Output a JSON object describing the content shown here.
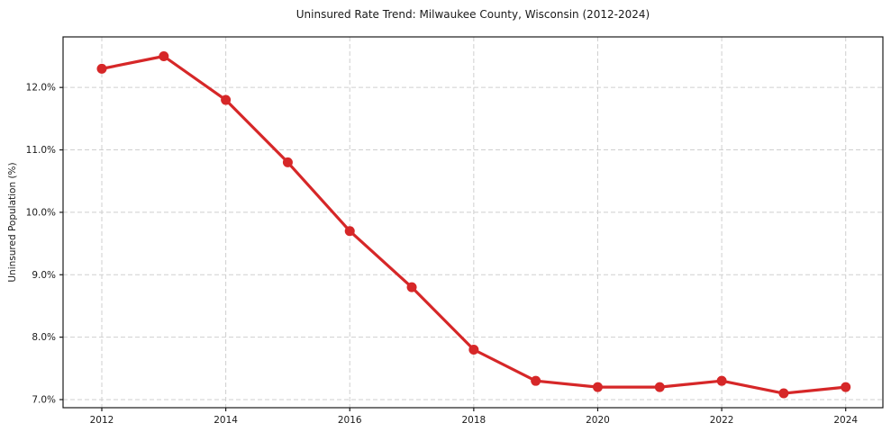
{
  "chart_data": {
    "type": "line",
    "title": "Uninsured Rate Trend: Milwaukee County, Wisconsin (2012-2024)",
    "xlabel": "",
    "ylabel": "Uninsured Population (%)",
    "x": [
      2012,
      2013,
      2014,
      2015,
      2016,
      2017,
      2018,
      2019,
      2020,
      2021,
      2022,
      2023,
      2024
    ],
    "series": [
      {
        "name": "Uninsured Rate",
        "values": [
          12.3,
          12.5,
          11.8,
          10.8,
          9.7,
          8.8,
          7.8,
          7.3,
          7.2,
          7.2,
          7.3,
          7.1,
          7.2
        ]
      }
    ],
    "xtick_values": [
      2012,
      2014,
      2016,
      2018,
      2020,
      2022,
      2024
    ],
    "xtick_labels": [
      "2012",
      "2014",
      "2016",
      "2018",
      "2020",
      "2022",
      "2024"
    ],
    "ytick_values": [
      7,
      8,
      9,
      10,
      11,
      12
    ],
    "ytick_labels": [
      "7.0%",
      "8.0%",
      "9.0%",
      "10.0%",
      "11.0%",
      "12.0%"
    ],
    "xlim": [
      2011.375,
      2024.6
    ],
    "ylim": [
      6.87,
      12.81
    ],
    "grid": true,
    "grid_style": "dashed",
    "legend": "none",
    "colors": {
      "line": "#d62728",
      "marker": "#d62728",
      "grid": "#cfcfcf",
      "spine": "#1a1a1a",
      "background": "#ffffff"
    }
  }
}
